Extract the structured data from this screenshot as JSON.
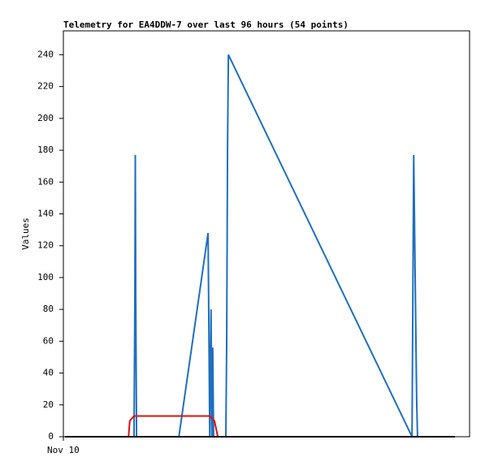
{
  "chart_data": {
    "type": "line",
    "title": "Telemetry for EA4DDW-7 over last 96 hours (54 points)",
    "ylabel": "Values",
    "xlim": [
      0,
      96
    ],
    "xticks": [
      {
        "value": 0,
        "label": "Nov 10"
      }
    ],
    "ylim": [
      0,
      255
    ],
    "yticks": [
      0,
      20,
      40,
      60,
      80,
      100,
      120,
      140,
      160,
      180,
      200,
      220,
      240
    ],
    "series": [
      {
        "color": "#1f6fbf",
        "x": [
          16.7,
          16.9,
          17.0,
          17.1,
          17.3,
          27.3,
          34.2,
          34.4,
          34.6,
          34.9,
          35.1,
          35.3,
          35.5,
          38.4,
          38.6,
          38.8,
          39.0,
          82.4,
          82.6,
          82.8,
          82.9,
          83.1,
          83.3,
          83.5,
          83.7
        ],
        "values": [
          0,
          88,
          177,
          88,
          0,
          0,
          128,
          65,
          0,
          80,
          0,
          56,
          0,
          0,
          60,
          180,
          240,
          0,
          88,
          177,
          155,
          110,
          66,
          23,
          0
        ]
      },
      {
        "color": "#e01010",
        "x": [
          15.4,
          15.7,
          16.7,
          34.6,
          35.7,
          36.5
        ],
        "values": [
          0,
          10,
          13,
          13,
          10,
          0
        ]
      },
      {
        "color": "#000000",
        "x": [
          0.4,
          92.5
        ],
        "values": [
          0,
          0
        ]
      }
    ]
  }
}
